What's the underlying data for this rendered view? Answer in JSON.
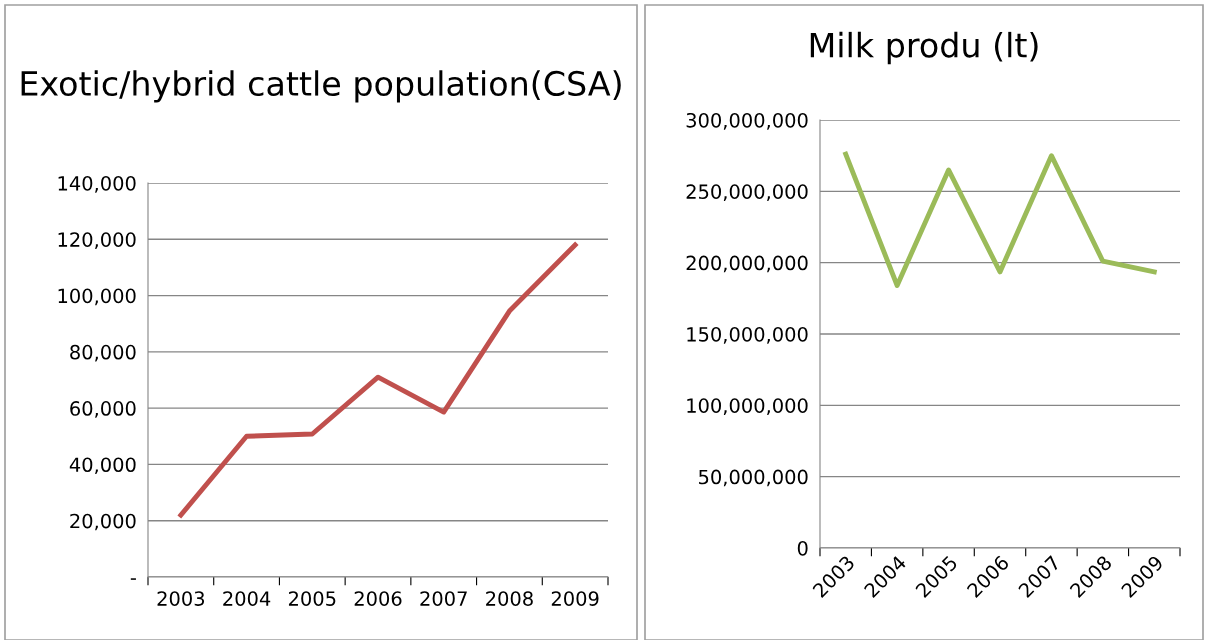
{
  "chart_data": [
    {
      "type": "line",
      "title": "Exotic/hybrid cattle population(CSA)",
      "categories": [
        "2003",
        "2004",
        "2005",
        "2006",
        "2007",
        "2008",
        "2009"
      ],
      "series": [
        {
          "color": "#c0504d",
          "values": [
            22000,
            50000,
            50800,
            71000,
            58600,
            94500,
            118000
          ]
        }
      ],
      "ylim": [
        0,
        140000
      ],
      "yticks": [
        {
          "value": 0,
          "label": "-"
        },
        {
          "value": 20000,
          "label": "20,000"
        },
        {
          "value": 40000,
          "label": "40,000"
        },
        {
          "value": 60000,
          "label": "60,000"
        },
        {
          "value": 80000,
          "label": "80,000"
        },
        {
          "value": 100000,
          "label": "100,000"
        },
        {
          "value": 120000,
          "label": "120,000"
        },
        {
          "value": 140000,
          "label": "140,000"
        }
      ],
      "grid": "y",
      "marker": "none",
      "line_style": "solid"
    },
    {
      "type": "line",
      "title": "Milk produ (lt)",
      "categories": [
        "2003",
        "2004",
        "2005",
        "2006",
        "2007",
        "2008",
        "2009"
      ],
      "series": [
        {
          "color": "#9bbb59",
          "values": [
            276000000,
            184000000,
            265000000,
            193500000,
            275000000,
            201000000,
            193500000
          ]
        }
      ],
      "ylim": [
        0,
        300000000
      ],
      "yticks": [
        0,
        {
          "value": 50000000,
          "label": "50,000,000"
        },
        {
          "value": 100000000,
          "label": "100,000,000"
        },
        {
          "value": 150000000,
          "label": "150,000,000"
        },
        {
          "value": 200000000,
          "label": "200,000,000"
        },
        {
          "value": 250000000,
          "label": "250,000,000"
        },
        {
          "value": 300000000,
          "label": "300,000,000"
        }
      ],
      "grid": "y",
      "marker": "none",
      "line_style": "solid"
    }
  ]
}
